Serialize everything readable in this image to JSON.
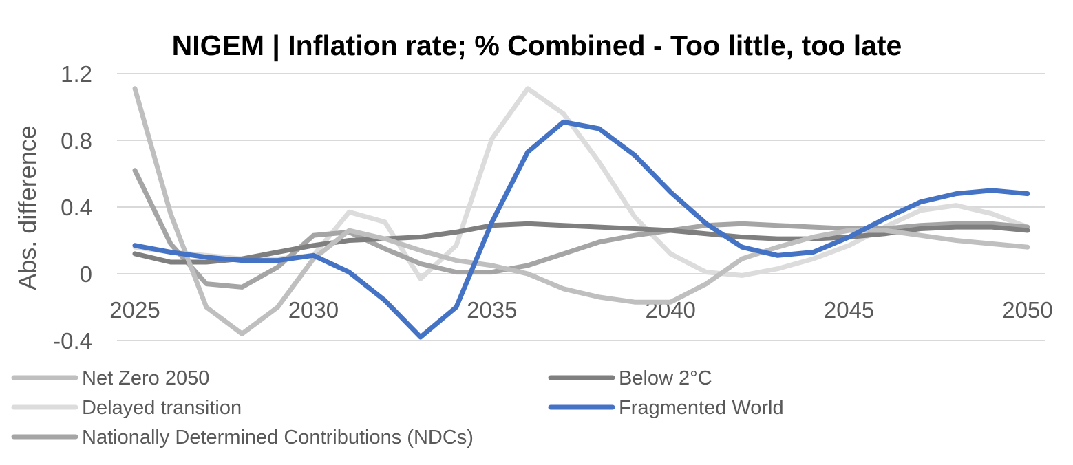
{
  "chart_data": {
    "type": "line",
    "title": "NIGEM | Inflation rate; % Combined - Too little, too late",
    "xlabel": "",
    "ylabel": "Abs. difference",
    "xlim": [
      2025,
      2050
    ],
    "ylim": [
      -0.4,
      1.2
    ],
    "x_ticks": [
      "2025",
      "2030",
      "2035",
      "2040",
      "2045",
      "2050"
    ],
    "y_ticks": [
      "1.2",
      "0.8",
      "0.4",
      "0",
      "-0.4"
    ],
    "grid": "horizontal",
    "legend_position": "bottom",
    "x": [
      2025,
      2026,
      2027,
      2028,
      2029,
      2030,
      2031,
      2032,
      2033,
      2034,
      2035,
      2036,
      2037,
      2038,
      2039,
      2040,
      2041,
      2042,
      2043,
      2044,
      2045,
      2046,
      2047,
      2048,
      2049,
      2050
    ],
    "series": [
      {
        "name": "Net Zero 2050",
        "color": "#BFBFBF",
        "values": [
          1.11,
          0.36,
          -0.2,
          -0.36,
          -0.2,
          0.09,
          0.26,
          0.21,
          0.14,
          0.08,
          0.05,
          0.0,
          -0.09,
          -0.14,
          -0.17,
          -0.17,
          -0.06,
          0.09,
          0.16,
          0.22,
          0.26,
          0.26,
          0.23,
          0.2,
          0.18,
          0.16
        ]
      },
      {
        "name": "Below 2°C",
        "color": "#7F7F7F",
        "values": [
          0.12,
          0.07,
          0.07,
          0.09,
          0.13,
          0.17,
          0.2,
          0.21,
          0.22,
          0.25,
          0.29,
          0.3,
          0.29,
          0.28,
          0.27,
          0.26,
          0.24,
          0.22,
          0.21,
          0.21,
          0.22,
          0.24,
          0.27,
          0.28,
          0.28,
          0.26
        ]
      },
      {
        "name": "Delayed transition",
        "color": "#DCDCDC",
        "values": [
          0.16,
          0.13,
          0.11,
          0.09,
          0.09,
          0.11,
          0.37,
          0.31,
          -0.03,
          0.17,
          0.81,
          1.11,
          0.96,
          0.67,
          0.34,
          0.12,
          0.01,
          -0.01,
          0.03,
          0.09,
          0.17,
          0.28,
          0.38,
          0.41,
          0.36,
          0.28
        ]
      },
      {
        "name": "Fragmented World",
        "color": "#4472C4",
        "values": [
          0.17,
          0.13,
          0.1,
          0.08,
          0.08,
          0.11,
          0.01,
          -0.16,
          -0.38,
          -0.2,
          0.31,
          0.73,
          0.91,
          0.87,
          0.71,
          0.49,
          0.3,
          0.16,
          0.11,
          0.13,
          0.22,
          0.33,
          0.43,
          0.48,
          0.5,
          0.48
        ]
      },
      {
        "name": "Nationally Determined Contributions (NDCs)",
        "color": "#A5A5A5",
        "values": [
          0.62,
          0.18,
          -0.06,
          -0.08,
          0.04,
          0.23,
          0.25,
          0.15,
          0.06,
          0.01,
          0.01,
          0.05,
          0.12,
          0.19,
          0.23,
          0.26,
          0.29,
          0.3,
          0.29,
          0.28,
          0.27,
          0.27,
          0.29,
          0.3,
          0.3,
          0.28
        ]
      }
    ]
  }
}
